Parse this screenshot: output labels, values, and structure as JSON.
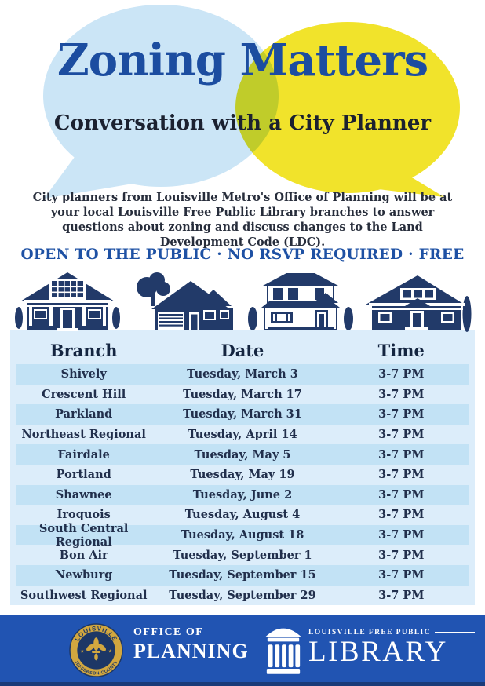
{
  "title": "Zoning Matters",
  "subtitle": "Conversation with a City Planner",
  "description": "City planners from Louisville Metro's Office of Planning will be at your local Louisville Free Public Library branches to answer questions about zoning and discuss changes to the Land Development Code (LDC).",
  "banner": "OPEN TO THE PUBLIC · NO RSVP REQUIRED · FREE",
  "colors": {
    "title_blue": "#1c4da0",
    "bubble_blue": "#cbe5f6",
    "bubble_yellow": "#f1e32b",
    "table_bg": "#dcedfa",
    "table_stripe": "#c2e2f5",
    "house_navy": "#223a69",
    "footer_blue": "#2154b2",
    "seal_gold": "#d2a73f",
    "seal_navy": "#1d3766"
  },
  "schedule": {
    "columns": [
      "Branch",
      "Date",
      "Time"
    ],
    "rows": [
      {
        "branch": "Shively",
        "date": "Tuesday, March 3",
        "time": "3-7 PM"
      },
      {
        "branch": "Crescent Hill",
        "date": "Tuesday, March 17",
        "time": "3-7 PM"
      },
      {
        "branch": "Parkland",
        "date": "Tuesday, March 31",
        "time": "3-7 PM"
      },
      {
        "branch": "Northeast Regional",
        "date": "Tuesday, April 14",
        "time": "3-7 PM"
      },
      {
        "branch": "Fairdale",
        "date": "Tuesday, May 5",
        "time": "3-7 PM"
      },
      {
        "branch": "Portland",
        "date": "Tuesday, May 19",
        "time": "3-7 PM"
      },
      {
        "branch": "Shawnee",
        "date": "Tuesday, June 2",
        "time": "3-7 PM"
      },
      {
        "branch": "Iroquois",
        "date": "Tuesday, August 4",
        "time": "3-7 PM"
      },
      {
        "branch": "South Central Regional",
        "date": "Tuesday, August 18",
        "time": "3-7 PM"
      },
      {
        "branch": "Bon Air",
        "date": "Tuesday, September 1",
        "time": "3-7 PM"
      },
      {
        "branch": "Newburg",
        "date": "Tuesday, September 15",
        "time": "3-7 PM"
      },
      {
        "branch": "Southwest Regional",
        "date": "Tuesday, September 29",
        "time": "3-7 PM"
      }
    ]
  },
  "footer": {
    "seal": {
      "top_text": "LOUISVILLE",
      "bottom_text": "JEFFERSON COUNTY"
    },
    "office": {
      "line1": "OFFICE OF",
      "line2": "PLANNING"
    },
    "library": {
      "small_text": "LOUISVILLE FREE PUBLIC",
      "large_text": "LIBRARY"
    }
  },
  "icons": {
    "bubbles": [
      "blue-speech-bubble",
      "yellow-speech-bubble"
    ],
    "houses": [
      "craftsman-house-icon",
      "suburban-house-icon",
      "foursquare-house-icon",
      "bungalow-house-icon"
    ],
    "seal": "louisville-metro-seal-icon",
    "library": "library-columns-icon"
  }
}
